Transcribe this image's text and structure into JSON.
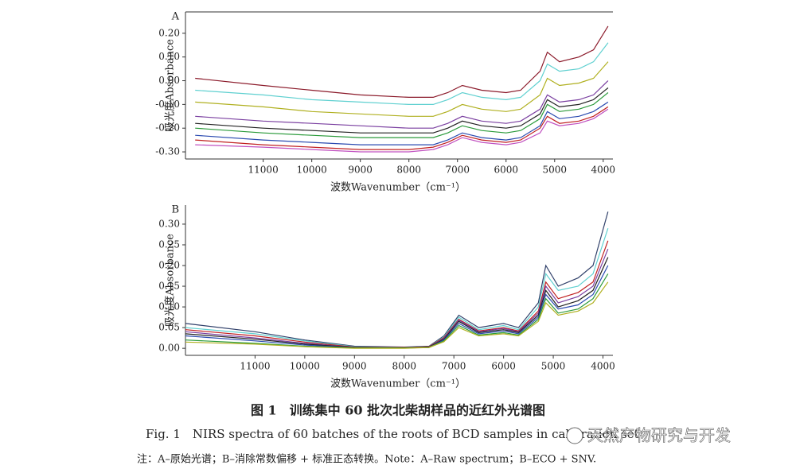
{
  "chart_data": [
    {
      "type": "line",
      "panel_label": "A",
      "ylabel": "吸光度Absorbance",
      "xlabel": "波数Wavenumber（cm⁻¹）",
      "x": [
        12400,
        11000,
        10000,
        9000,
        8000,
        7500,
        7200,
        6900,
        6500,
        6000,
        5700,
        5300,
        5150,
        4900,
        4500,
        4200,
        3900
      ],
      "xlim": [
        12600,
        3800
      ],
      "xticks": [
        11000,
        10000,
        9000,
        8000,
        7000,
        6000,
        5000,
        4000
      ],
      "ylim": [
        -0.33,
        0.29
      ],
      "yticks": [
        {
          "value": 0.2,
          "label": "0.20"
        },
        {
          "value": 0.1,
          "label": "0.10"
        },
        {
          "value": 0,
          "label": "0.00"
        },
        {
          "value": -0.1,
          "label": "-0.10"
        },
        {
          "value": -0.2,
          "label": "-0.20"
        },
        {
          "value": -0.3,
          "label": "-0.30"
        }
      ],
      "series": [
        {
          "color": "#8b1a2a",
          "values": [
            0.01,
            -0.02,
            -0.04,
            -0.06,
            -0.07,
            -0.07,
            -0.05,
            -0.02,
            -0.04,
            -0.05,
            -0.04,
            0.04,
            0.12,
            0.08,
            0.1,
            0.13,
            0.23
          ]
        },
        {
          "color": "#5fd0d0",
          "values": [
            -0.04,
            -0.06,
            -0.08,
            -0.09,
            -0.1,
            -0.1,
            -0.08,
            -0.05,
            -0.07,
            -0.08,
            -0.07,
            0.0,
            0.07,
            0.04,
            0.05,
            0.08,
            0.16
          ]
        },
        {
          "color": "#b0b020",
          "values": [
            -0.09,
            -0.11,
            -0.13,
            -0.14,
            -0.15,
            -0.15,
            -0.13,
            -0.1,
            -0.12,
            -0.13,
            -0.12,
            -0.06,
            0.01,
            -0.02,
            -0.01,
            0.01,
            0.08
          ]
        },
        {
          "color": "#7a3fa0",
          "values": [
            -0.15,
            -0.17,
            -0.18,
            -0.19,
            -0.2,
            -0.2,
            -0.18,
            -0.15,
            -0.17,
            -0.18,
            -0.17,
            -0.12,
            -0.06,
            -0.09,
            -0.08,
            -0.06,
            0.0
          ]
        },
        {
          "color": "#222222",
          "values": [
            -0.18,
            -0.2,
            -0.21,
            -0.22,
            -0.22,
            -0.22,
            -0.2,
            -0.17,
            -0.19,
            -0.2,
            -0.19,
            -0.14,
            -0.08,
            -0.11,
            -0.1,
            -0.08,
            -0.03
          ]
        },
        {
          "color": "#2a9a3a",
          "values": [
            -0.2,
            -0.22,
            -0.23,
            -0.24,
            -0.24,
            -0.24,
            -0.22,
            -0.19,
            -0.21,
            -0.22,
            -0.21,
            -0.16,
            -0.1,
            -0.13,
            -0.12,
            -0.1,
            -0.05
          ]
        },
        {
          "color": "#2a4ab0",
          "values": [
            -0.23,
            -0.25,
            -0.26,
            -0.27,
            -0.27,
            -0.27,
            -0.25,
            -0.22,
            -0.24,
            -0.25,
            -0.24,
            -0.19,
            -0.13,
            -0.16,
            -0.15,
            -0.13,
            -0.09
          ]
        },
        {
          "color": "#c02020",
          "values": [
            -0.25,
            -0.27,
            -0.28,
            -0.29,
            -0.29,
            -0.28,
            -0.26,
            -0.23,
            -0.25,
            -0.26,
            -0.25,
            -0.2,
            -0.15,
            -0.18,
            -0.17,
            -0.15,
            -0.11
          ]
        },
        {
          "color": "#c050c0",
          "values": [
            -0.27,
            -0.28,
            -0.29,
            -0.3,
            -0.3,
            -0.29,
            -0.27,
            -0.24,
            -0.26,
            -0.27,
            -0.26,
            -0.22,
            -0.17,
            -0.19,
            -0.18,
            -0.16,
            -0.12
          ]
        }
      ]
    },
    {
      "type": "line",
      "panel_label": "B",
      "ylabel": "吸光度Absorbance",
      "xlabel": "波数Wavenumber（cm⁻¹）",
      "x": [
        12400,
        11000,
        10000,
        9000,
        8000,
        7500,
        7200,
        6900,
        6500,
        6000,
        5700,
        5300,
        5150,
        4900,
        4500,
        4200,
        3900
      ],
      "xlim": [
        12400,
        3800
      ],
      "xticks": [
        11000,
        10000,
        9000,
        8000,
        7000,
        6000,
        5000,
        4000
      ],
      "ylim": [
        -0.017,
        0.346
      ],
      "yticks": [
        {
          "value": 0.3,
          "label": "0.30"
        },
        {
          "value": 0.25,
          "label": "0.25"
        },
        {
          "value": 0.2,
          "label": "0.20"
        },
        {
          "value": 0.15,
          "label": "0.15"
        },
        {
          "value": 0.1,
          "label": "0.10"
        },
        {
          "value": 0.05,
          "label": "0.05"
        },
        {
          "value": 0,
          "label": "0.00"
        }
      ],
      "series": [
        {
          "color": "#30406a",
          "values": [
            0.06,
            0.04,
            0.02,
            0.005,
            0.003,
            0.005,
            0.03,
            0.08,
            0.05,
            0.06,
            0.05,
            0.11,
            0.2,
            0.15,
            0.17,
            0.2,
            0.33
          ]
        },
        {
          "color": "#5fd0d0",
          "values": [
            0.05,
            0.035,
            0.018,
            0.004,
            0.002,
            0.004,
            0.028,
            0.075,
            0.045,
            0.055,
            0.045,
            0.1,
            0.18,
            0.14,
            0.15,
            0.18,
            0.29
          ]
        },
        {
          "color": "#c02020",
          "values": [
            0.045,
            0.03,
            0.015,
            0.003,
            0.002,
            0.004,
            0.026,
            0.07,
            0.042,
            0.05,
            0.042,
            0.09,
            0.16,
            0.12,
            0.135,
            0.16,
            0.26
          ]
        },
        {
          "color": "#7a3fa0",
          "values": [
            0.04,
            0.025,
            0.012,
            0.002,
            0.001,
            0.003,
            0.024,
            0.068,
            0.04,
            0.048,
            0.04,
            0.085,
            0.15,
            0.11,
            0.125,
            0.15,
            0.24
          ]
        },
        {
          "color": "#222222",
          "values": [
            0.035,
            0.022,
            0.01,
            0.002,
            0.001,
            0.003,
            0.022,
            0.065,
            0.038,
            0.045,
            0.038,
            0.08,
            0.14,
            0.1,
            0.115,
            0.14,
            0.22
          ]
        },
        {
          "color": "#2a4ab0",
          "values": [
            0.03,
            0.018,
            0.008,
            0.001,
            0.001,
            0.002,
            0.02,
            0.06,
            0.035,
            0.042,
            0.035,
            0.075,
            0.13,
            0.095,
            0.105,
            0.13,
            0.2
          ]
        },
        {
          "color": "#2a9a3a",
          "values": [
            0.02,
            0.012,
            0.005,
            0.001,
            0.001,
            0.002,
            0.018,
            0.055,
            0.032,
            0.038,
            0.032,
            0.07,
            0.12,
            0.085,
            0.095,
            0.12,
            0.18
          ]
        },
        {
          "color": "#b0b020",
          "values": [
            0.015,
            0.01,
            0.004,
            0,
            0,
            0.002,
            0.016,
            0.05,
            0.03,
            0.035,
            0.03,
            0.065,
            0.11,
            0.08,
            0.09,
            0.11,
            0.16
          ]
        }
      ]
    }
  ],
  "caption_cn": "图 1　训练集中 60 批次北柴胡样品的近红外光谱图",
  "caption_en": "Fig. 1　NIRS spectra of 60 batches of the roots of BCD samples in calibration set",
  "note": "注：A–原始光谱；B–消除常数偏移 + 标准正态转换。Note：A–Raw spectrum；B–ECO + SNV.",
  "watermark": "天然产物研究与开发"
}
